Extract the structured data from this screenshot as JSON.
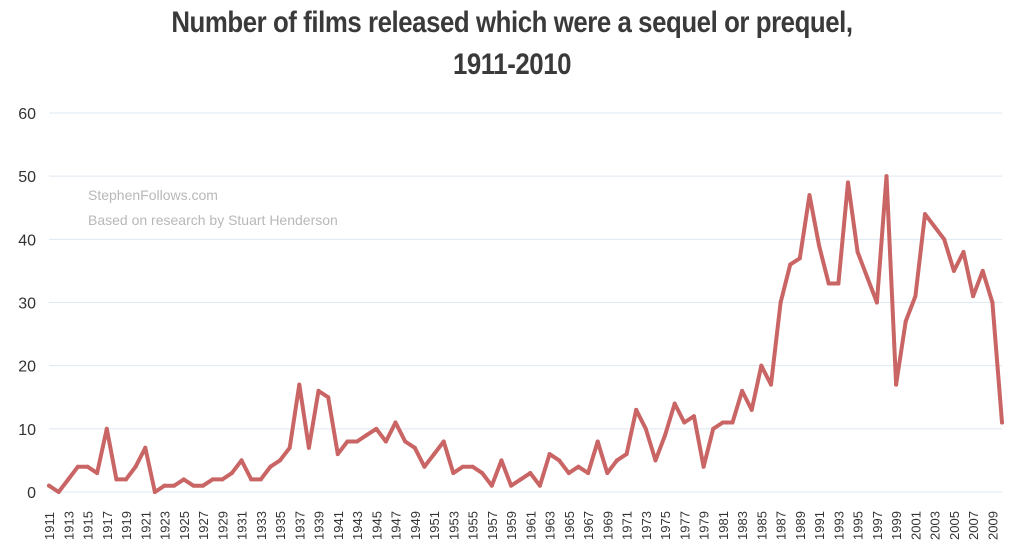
{
  "title_line1": "Number of films released which were a sequel or prequel,",
  "title_line2": "1911-2010",
  "annotations": [
    "StephenFollows.com",
    "Based on research by Stuart Henderson"
  ],
  "colors": {
    "line": "#c96564",
    "grid": "#dde8f0",
    "text": "#333333",
    "annotation": "#b8b8b8"
  },
  "chart_data": {
    "type": "line",
    "title": "Number of films released which were a sequel or prequel, 1911-2010",
    "xlabel": "",
    "ylabel": "",
    "ylim": [
      0,
      60
    ],
    "yticks": [
      0,
      10,
      20,
      30,
      40,
      50,
      60
    ],
    "grid": true,
    "xtick_labels": [
      "1911",
      "1913",
      "1915",
      "1917",
      "1919",
      "1921",
      "1923",
      "1925",
      "1927",
      "1929",
      "1931",
      "1933",
      "1935",
      "1937",
      "1939",
      "1941",
      "1943",
      "1945",
      "1947",
      "1949",
      "1951",
      "1953",
      "1955",
      "1957",
      "1959",
      "1961",
      "1963",
      "1965",
      "1967",
      "1969",
      "1971",
      "1973",
      "1975",
      "1977",
      "1979",
      "1981",
      "1983",
      "1985",
      "1987",
      "1989",
      "1991",
      "1993",
      "1995",
      "1997",
      "1999",
      "2001",
      "2003",
      "2005",
      "2007",
      "2009"
    ],
    "x": [
      1911,
      1912,
      1913,
      1914,
      1915,
      1916,
      1917,
      1918,
      1919,
      1920,
      1921,
      1922,
      1923,
      1924,
      1925,
      1926,
      1927,
      1928,
      1929,
      1930,
      1931,
      1932,
      1933,
      1934,
      1935,
      1936,
      1937,
      1938,
      1939,
      1940,
      1941,
      1942,
      1943,
      1944,
      1945,
      1946,
      1947,
      1948,
      1949,
      1950,
      1951,
      1952,
      1953,
      1954,
      1955,
      1956,
      1957,
      1958,
      1959,
      1960,
      1961,
      1962,
      1963,
      1964,
      1965,
      1966,
      1967,
      1968,
      1969,
      1970,
      1971,
      1972,
      1973,
      1974,
      1975,
      1976,
      1977,
      1978,
      1979,
      1980,
      1981,
      1982,
      1983,
      1984,
      1985,
      1986,
      1987,
      1988,
      1989,
      1990,
      1991,
      1992,
      1993,
      1994,
      1995,
      1996,
      1997,
      1998,
      1999,
      2000,
      2001,
      2002,
      2003,
      2004,
      2005,
      2006,
      2007,
      2008,
      2009,
      2010
    ],
    "series": [
      {
        "values": [
          1,
          0,
          2,
          4,
          4,
          3,
          10,
          2,
          2,
          4,
          7,
          0,
          1,
          1,
          2,
          1,
          1,
          2,
          2,
          3,
          5,
          2,
          2,
          4,
          5,
          7,
          17,
          7,
          16,
          15,
          6,
          8,
          8,
          9,
          10,
          8,
          11,
          8,
          7,
          4,
          6,
          8,
          3,
          4,
          4,
          3,
          1,
          5,
          1,
          2,
          3,
          1,
          6,
          5,
          3,
          4,
          3,
          8,
          3,
          5,
          6,
          13,
          10,
          5,
          9,
          14,
          11,
          12,
          4,
          10,
          11,
          11,
          16,
          13,
          20,
          17,
          30,
          36,
          37,
          47,
          39,
          33,
          33,
          49,
          38,
          34,
          30,
          50,
          17,
          27,
          31,
          44,
          42,
          40,
          35,
          38,
          31,
          35,
          30,
          11
        ]
      }
    ]
  }
}
